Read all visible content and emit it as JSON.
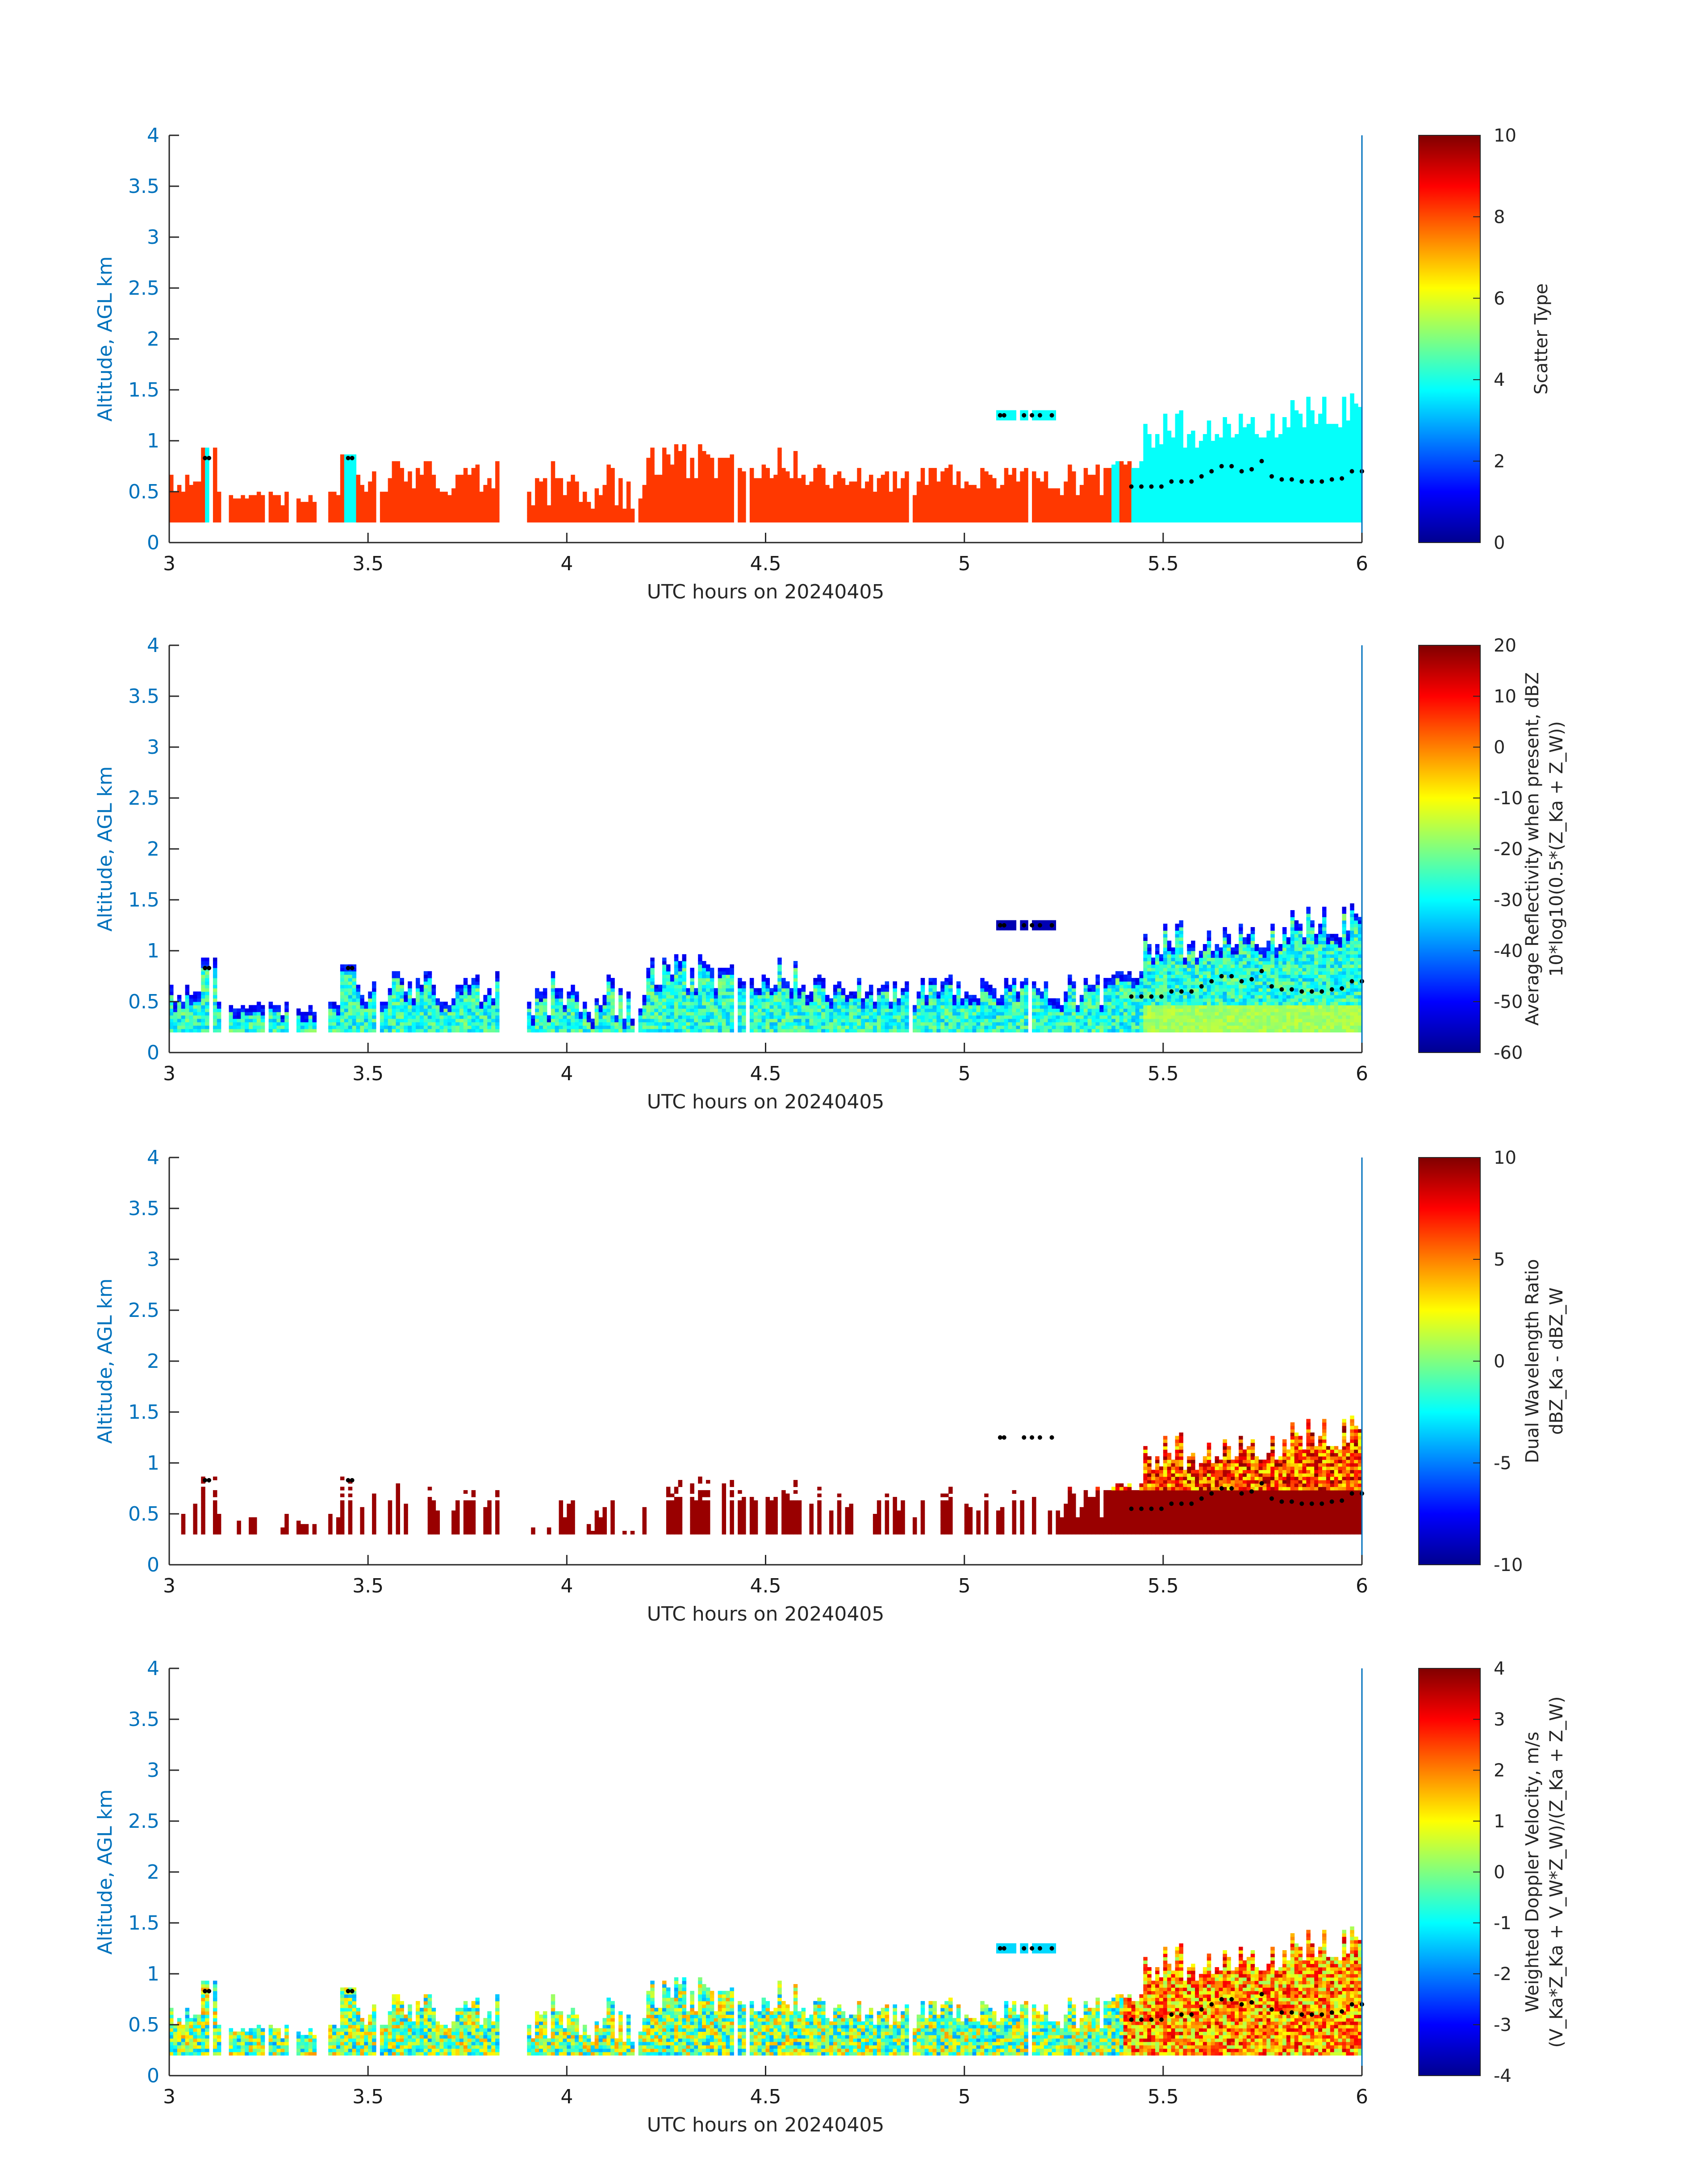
{
  "chart_data": [
    {
      "type": "heatmap",
      "field": "scatter_type",
      "xlabel": "UTC hours on 20240405",
      "ylabel": "Altitude, AGL km",
      "xlim": [
        3,
        6
      ],
      "ylim": [
        0,
        4
      ],
      "xticks": [
        "3",
        "3.5",
        "4",
        "4.5",
        "5",
        "5.5",
        "6"
      ],
      "yticks": [
        "0",
        "0.5",
        "1",
        "1.5",
        "2",
        "2.5",
        "3",
        "3.5",
        "4"
      ],
      "colorbar": {
        "label": "Scatter Type",
        "sublabel": "",
        "min": 0,
        "max": 10,
        "ticks": [
          "0",
          "2",
          "4",
          "6",
          "8",
          "10"
        ]
      },
      "colormap": "jet",
      "cloud_base": [
        0.55,
        0.55,
        0.55,
        0.55,
        0.6,
        0.6,
        0.6,
        0.65,
        0.7,
        0.75,
        0.75,
        0.7,
        0.72,
        0.8,
        0.65,
        0.62,
        0.62,
        0.6,
        0.6,
        0.6,
        0.62,
        0.63,
        0.7,
        0.7
      ]
    },
    {
      "type": "heatmap",
      "field": "reflectivity",
      "xlabel": "UTC hours on 20240405",
      "ylabel": "Altitude, AGL km",
      "xlim": [
        3,
        6
      ],
      "ylim": [
        0,
        4
      ],
      "xticks": [
        "3",
        "3.5",
        "4",
        "4.5",
        "5",
        "5.5",
        "6"
      ],
      "yticks": [
        "0",
        "0.5",
        "1",
        "1.5",
        "2",
        "2.5",
        "3",
        "3.5",
        "4"
      ],
      "colorbar": {
        "label": "Average Reflectivity when present, dBZ",
        "sublabel": "10*log10(0.5*(Z_Ka + Z_W))",
        "min": -60,
        "max": 20,
        "ticks": [
          "-60",
          "-50",
          "-40",
          "-30",
          "-20",
          "-10",
          "0",
          "10",
          "20"
        ]
      },
      "colormap": "jet"
    },
    {
      "type": "heatmap",
      "field": "dual_wavelength_ratio",
      "xlabel": "UTC hours on 20240405",
      "ylabel": "Altitude, AGL km",
      "xlim": [
        3,
        6
      ],
      "ylim": [
        0,
        4
      ],
      "xticks": [
        "3",
        "3.5",
        "4",
        "4.5",
        "5",
        "5.5",
        "6"
      ],
      "yticks": [
        "0",
        "0.5",
        "1",
        "1.5",
        "2",
        "2.5",
        "3",
        "3.5",
        "4"
      ],
      "colorbar": {
        "label": "Dual Wavelength Ratio",
        "sublabel": "dBZ_Ka - dBZ_W",
        "min": -10,
        "max": 10,
        "ticks": [
          "-10",
          "-5",
          "0",
          "5",
          "10"
        ]
      },
      "colormap": "jet"
    },
    {
      "type": "heatmap",
      "field": "doppler_velocity",
      "xlabel": "UTC hours on 20240405",
      "ylabel": "Altitude, AGL km",
      "xlim": [
        3,
        6
      ],
      "ylim": [
        0,
        4
      ],
      "xticks": [
        "3",
        "3.5",
        "4",
        "4.5",
        "5",
        "5.5",
        "6"
      ],
      "yticks": [
        "0",
        "0.5",
        "1",
        "1.5",
        "2",
        "2.5",
        "3",
        "3.5",
        "4"
      ],
      "colorbar": {
        "label": "Weighted Doppler Velocity, m/s",
        "sublabel": "(V_Ka*Z_Ka + V_W*Z_W)/(Z_Ka + Z_W)",
        "min": -4,
        "max": 4,
        "ticks": [
          "-4",
          "-3",
          "-2",
          "-1",
          "0",
          "1",
          "2",
          "3",
          "4"
        ]
      },
      "colormap": "jet"
    }
  ]
}
